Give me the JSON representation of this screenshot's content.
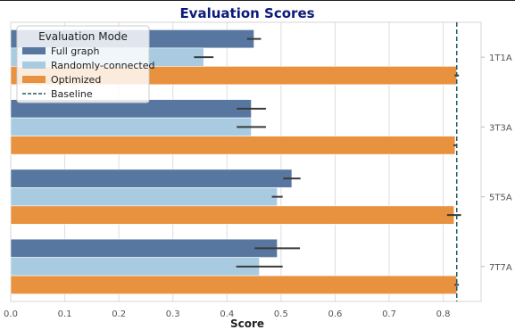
{
  "chart_data": {
    "type": "bar",
    "orientation": "horizontal",
    "title": "Evaluation Scores",
    "xlabel": "Score",
    "ylabel": "",
    "xlim": [
      0,
      0.87
    ],
    "xticks": [
      "0.0",
      "0.1",
      "0.2",
      "0.3",
      "0.4",
      "0.5",
      "0.6",
      "0.7",
      "0.8"
    ],
    "categories": [
      "1T1A",
      "3T3A",
      "5T5A",
      "7T7A"
    ],
    "series": [
      {
        "name": "Full graph",
        "color": "#5877a0",
        "values": [
          0.45,
          0.445,
          0.52,
          0.493
        ],
        "error": [
          0.013,
          0.027,
          0.016,
          0.042
        ]
      },
      {
        "name": "Randomly-connected",
        "color": "#a9cbe2",
        "values": [
          0.357,
          0.445,
          0.493,
          0.46
        ],
        "error": [
          0.018,
          0.027,
          0.01,
          0.043
        ]
      },
      {
        "name": "Optimized",
        "color": "#e8913e",
        "values": [
          0.825,
          0.822,
          0.82,
          0.825
        ],
        "error": [
          0.004,
          0.003,
          0.013,
          0.004
        ]
      }
    ],
    "reference_line": {
      "name": "Baseline",
      "value": 0.825,
      "color": "#1f5c61",
      "style": "dashed"
    },
    "legend": {
      "title": "Evaluation Mode",
      "placement": "top-left"
    },
    "grid": "vertical",
    "yaxis_side": "right"
  }
}
